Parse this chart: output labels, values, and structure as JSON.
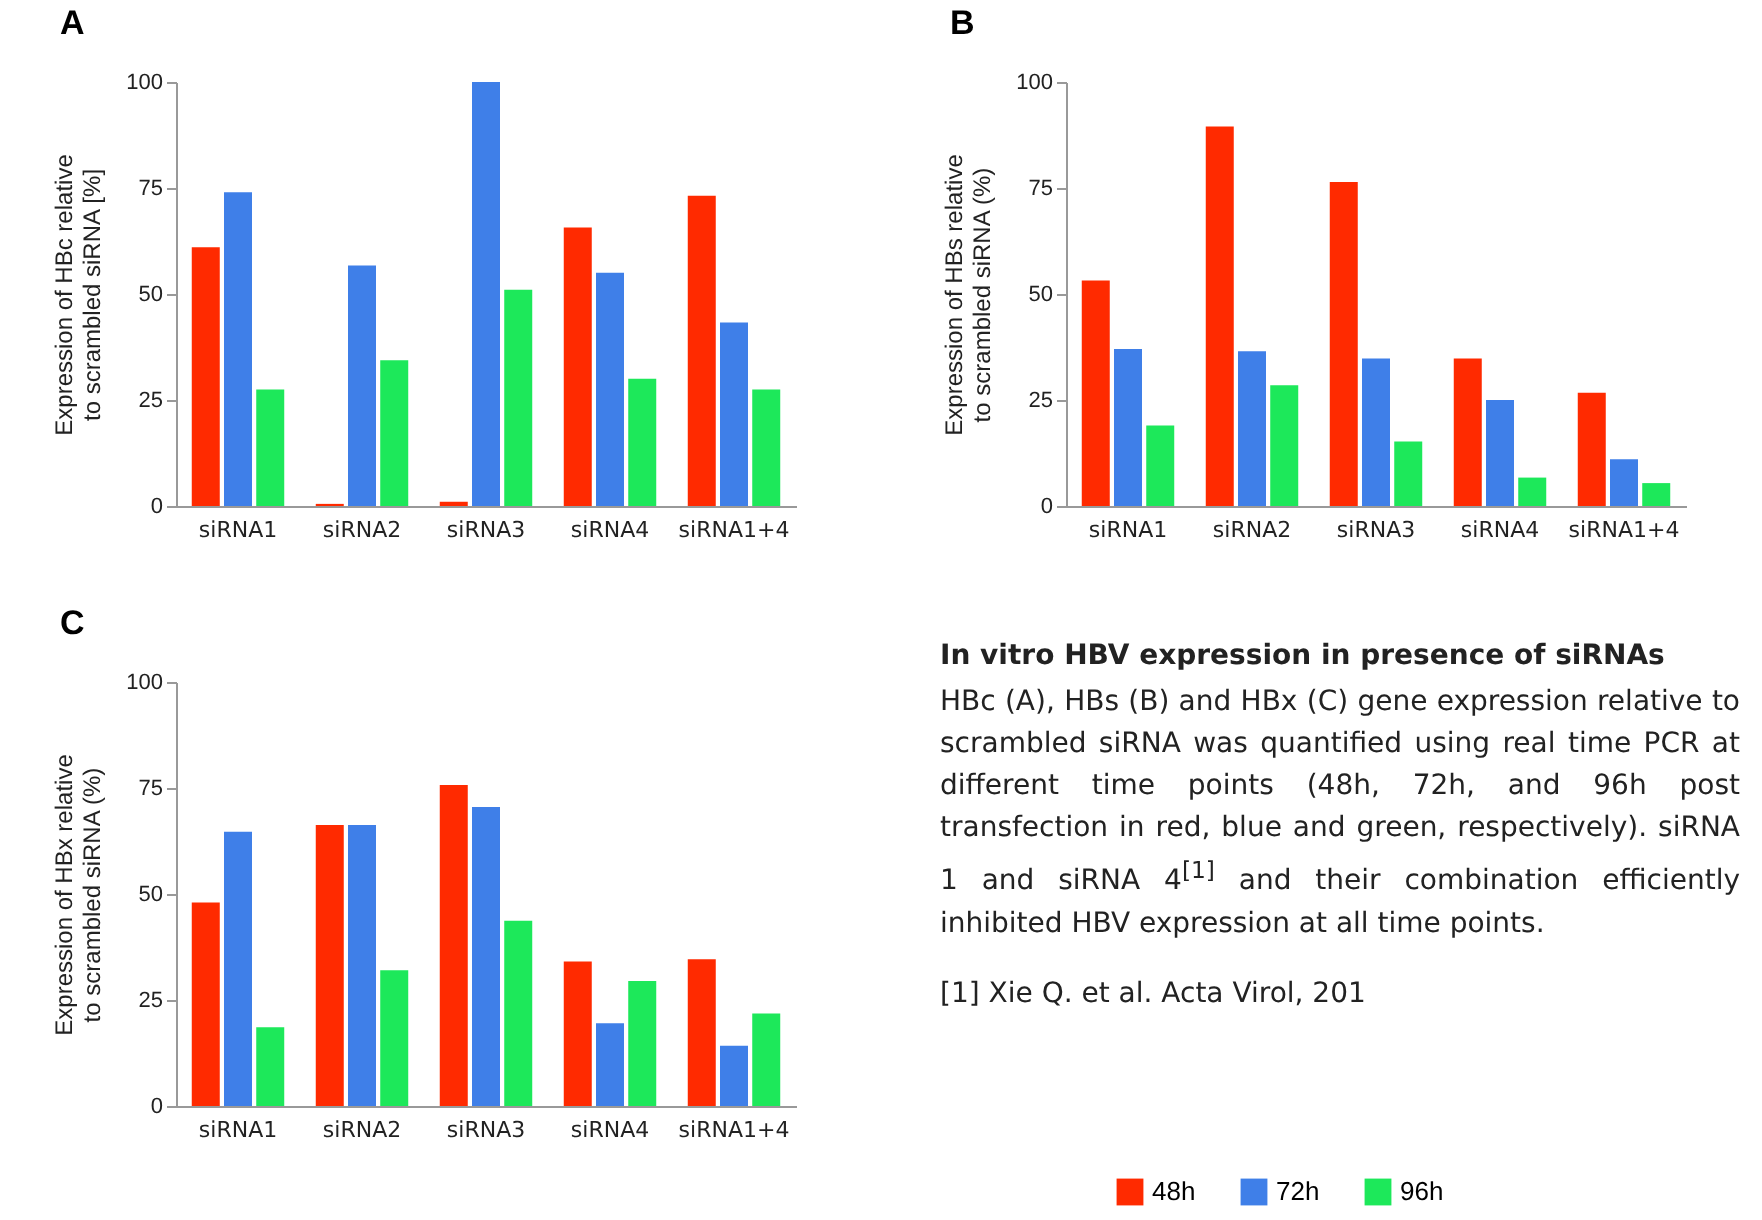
{
  "chart_data": [
    {
      "type": "bar",
      "title": "A",
      "ylabel": "Expression of HBc relative to scrambled siRNA [%]",
      "categories": [
        "siRNA1",
        "siRNA2",
        "siRNA3",
        "siRNA4",
        "siRNA1+4"
      ],
      "ylim": [
        0,
        100
      ],
      "yticks": [
        0,
        25,
        50,
        75,
        100
      ],
      "grid": false,
      "legend": false,
      "series": [
        {
          "color": "#ff2a00",
          "values": [
            61,
            0.5,
            1,
            65.7,
            73.2
          ]
        },
        {
          "color": "#3f7fe8",
          "values": [
            74,
            56.7,
            100,
            55,
            43.3
          ]
        },
        {
          "color": "#1de85a",
          "values": [
            27.5,
            34.4,
            51,
            30,
            27.5
          ]
        }
      ]
    },
    {
      "type": "bar",
      "title": "B",
      "ylabel": "Expression of HBs relative to scrambled siRNA (%)",
      "categories": [
        "siRNA1",
        "siRNA2",
        "siRNA3",
        "siRNA4",
        "siRNA1+4"
      ],
      "ylim": [
        0,
        100
      ],
      "yticks": [
        0,
        25,
        50,
        75,
        100
      ],
      "grid": false,
      "legend": false,
      "series": [
        {
          "color": "#ff2a00",
          "values": [
            53.2,
            89.5,
            76.4,
            34.8,
            26.7
          ]
        },
        {
          "color": "#3f7fe8",
          "values": [
            37,
            36.5,
            34.8,
            25,
            11
          ]
        },
        {
          "color": "#1de85a",
          "values": [
            19,
            28.5,
            15.2,
            6.7,
            5.4
          ]
        }
      ]
    },
    {
      "type": "bar",
      "title": "C",
      "ylabel": "Expression of HBx relative to scrambled siRNA (%)",
      "categories": [
        "siRNA1",
        "siRNA2",
        "siRNA3",
        "siRNA4",
        "siRNA1+4"
      ],
      "ylim": [
        0,
        100
      ],
      "yticks": [
        0,
        25,
        50,
        75,
        100
      ],
      "grid": false,
      "legend": "bottom right",
      "series": [
        {
          "name": "48h",
          "color": "#ff2a00",
          "values": [
            48,
            66.3,
            75.7,
            34.1,
            34.6
          ]
        },
        {
          "name": "72h",
          "color": "#3f7fe8",
          "values": [
            64.7,
            66.3,
            70.5,
            19.5,
            14.2
          ]
        },
        {
          "name": "96h",
          "color": "#1de85a",
          "values": [
            18.6,
            32,
            43.7,
            29.5,
            21.8
          ]
        }
      ]
    },
    {
      "type": "other",
      "title": "In vitro HBV expression in presence of siRNAs",
      "annotations": [
        "HBc (A), HBs (B) and HBx (C) gene expression relative to scrambled siRNA was quantified using real time PCR at different time points (48h, 72h, and 96h post transfection in red, blue and green, respectively). siRNA 1 and siRNA 4$^{[1]}$ and their combination efficiently inhibited HBV expression at all time points.",
        "[1] Xie Q. et al. Acta Virol, 201"
      ]
    }
  ]
}
